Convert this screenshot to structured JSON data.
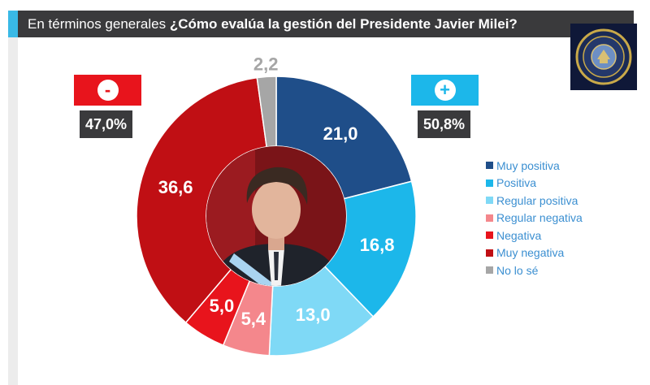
{
  "header": {
    "prefix": "En términos generales",
    "question": "¿Cómo evalúa la gestión del Presidente Javier Milei?"
  },
  "negative_box": {
    "sign": "-",
    "percent": "47,0%",
    "color": "#e8141c"
  },
  "positive_box": {
    "sign": "+",
    "percent": "50,8%",
    "color": "#1cb7ea"
  },
  "chart_data": {
    "type": "pie",
    "style": "donut",
    "title": "¿Cómo evalúa la gestión del Presidente Javier Milei?",
    "subtitle": "En términos generales",
    "legend_position": "right",
    "categories": [
      "Muy positiva",
      "Positiva",
      "Regular positiva",
      "Regular negativa",
      "Negativa",
      "Muy negativa",
      "No lo sé"
    ],
    "values": [
      21.0,
      16.8,
      13.0,
      5.4,
      5.0,
      36.6,
      2.2
    ],
    "labels": [
      "21,0",
      "16,8",
      "13,0",
      "5,4",
      "5,0",
      "36,6",
      "2,2"
    ],
    "colors": [
      "#1f4e89",
      "#1cb7ea",
      "#7fd9f6",
      "#f4878c",
      "#e8141c",
      "#c00f14",
      "#a6a6a6"
    ],
    "totals": {
      "negative": "47,0%",
      "positive": "50,8%"
    }
  }
}
